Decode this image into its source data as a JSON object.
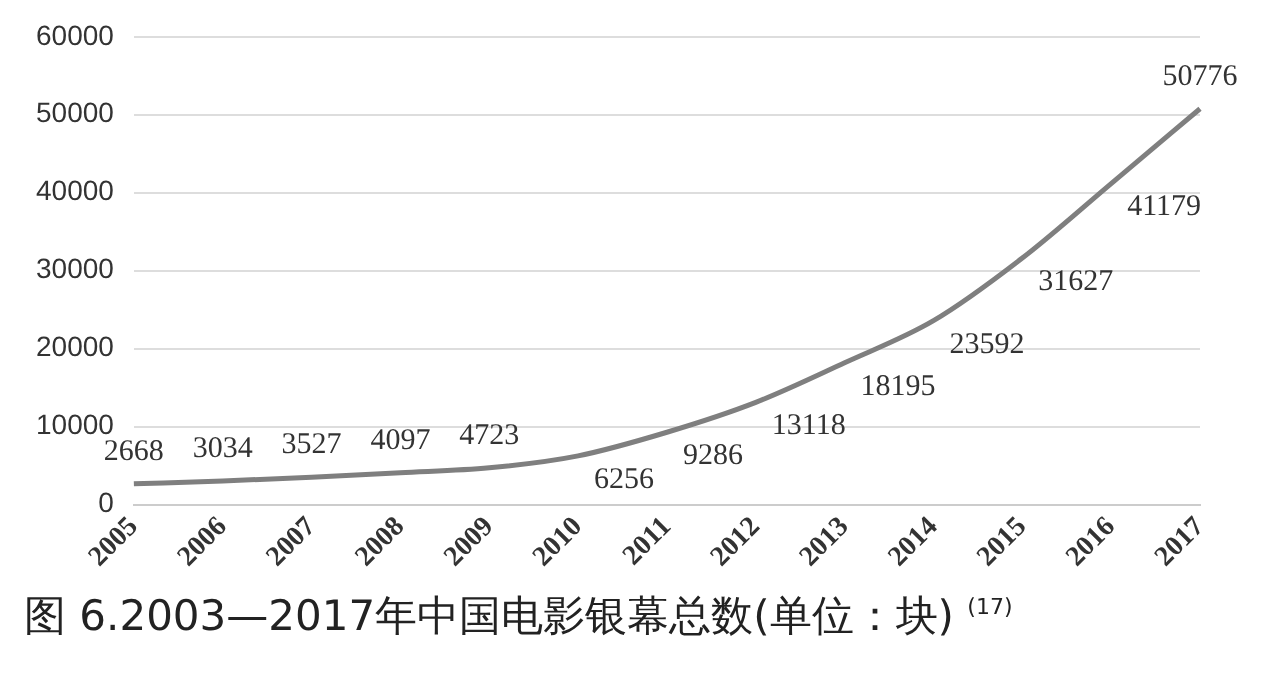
{
  "chart_data": {
    "type": "line",
    "title": "图 6.2003—2017年中国电影银幕总数(单位：块) $^{(17)}$",
    "categories": [
      "2005",
      "2006",
      "2007",
      "2008",
      "2009",
      "2010",
      "2011",
      "2012",
      "2013",
      "2014",
      "2015",
      "2016",
      "2017"
    ],
    "series": [
      {
        "color": "#7f7f7f",
        "values": [
          2668,
          3034,
          3527,
          4097,
          4723,
          6256,
          9286,
          13118,
          18195,
          23592,
          31627,
          41179,
          50776
        ]
      }
    ],
    "ylim": [
      0,
      60000
    ],
    "yticks": [
      0,
      10000,
      20000,
      30000,
      40000,
      50000,
      60000
    ],
    "grid": "y",
    "legend": false,
    "marker": "none",
    "line_style": "solid",
    "data_labels": true
  }
}
